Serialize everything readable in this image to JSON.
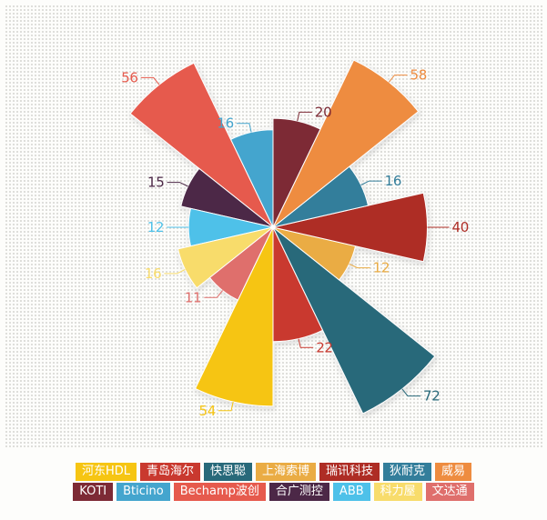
{
  "chart_data": {
    "type": "pie",
    "variant": "nightingale-rose",
    "title": "",
    "items": [
      {
        "name": "河东HDL",
        "value": 54,
        "color": "#F6C513"
      },
      {
        "name": "青岛海尔",
        "value": 22,
        "color": "#C9392F"
      },
      {
        "name": "快思聪",
        "value": 72,
        "color": "#28697A"
      },
      {
        "name": "上海索博",
        "value": 12,
        "color": "#EAAC44"
      },
      {
        "name": "瑞讯科技",
        "value": 40,
        "color": "#AE2D25"
      },
      {
        "name": "狄耐克",
        "value": 16,
        "color": "#337E9B"
      },
      {
        "name": "威易",
        "value": 58,
        "color": "#EE8C40"
      },
      {
        "name": "KOTI",
        "value": 20,
        "color": "#7D2A35"
      },
      {
        "name": "Bticino",
        "value": 16,
        "color": "#44A5CE"
      },
      {
        "name": "Bechamp波创",
        "value": 56,
        "color": "#E65A4D"
      },
      {
        "name": "合广测控",
        "value": 15,
        "color": "#4C2847"
      },
      {
        "name": "ABB",
        "value": 12,
        "color": "#4EC1E9"
      },
      {
        "name": "科力屋",
        "value": 16,
        "color": "#F8DC6B"
      },
      {
        "name": "文达通",
        "value": 11,
        "color": "#DF6F6C"
      }
    ],
    "layout": {
      "center": [
        300,
        250
      ],
      "radius_per_sqrt_value": 26.8,
      "start_angle_deg": 180,
      "direction": "counterclockwise-in-data-order",
      "sector_angle_deg": 25.7142857,
      "label_position": "outside",
      "label_line_radial": 10,
      "label_line_horizontal": 14,
      "grid": "dotted-background",
      "legend_position": "bottom"
    },
    "legend": {
      "rows": [
        [
          "河东HDL",
          "青岛海尔",
          "快思聪",
          "上海索博",
          "瑞讯科技",
          "狄耐克",
          "威易"
        ],
        [
          "KOTI",
          "Bticino",
          "Bechamp波创",
          "合广测控",
          "ABB",
          "科力屋",
          "文达通"
        ]
      ]
    }
  }
}
